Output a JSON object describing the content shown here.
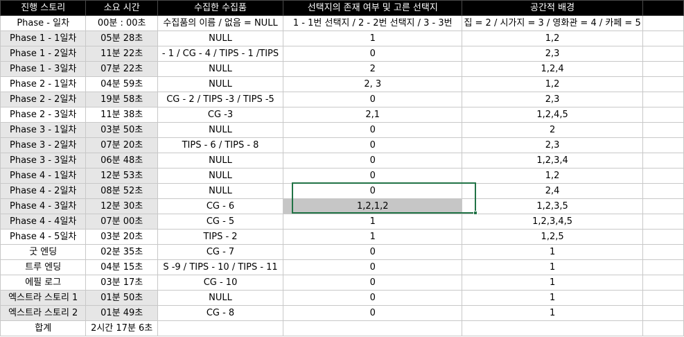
{
  "columns": [
    "진행 스토리",
    "소요 시간",
    "수집한 수집품",
    "선택지의 존재 여부 및 고른 선택지",
    "공간적 배경",
    "",
    ""
  ],
  "rows": [
    {
      "story": "Phase - 일차",
      "time": "00분 : 00초",
      "items": "수집품의 이름 / 없음 = NULL",
      "choice": "1 - 1번 선택지 / 2 - 2번 선택지 / 3 - 3번",
      "place": "집 = 2 / 시가지 = 3 / 영화관 = 4 / 카페  = 5",
      "e1": "",
      "e2": ""
    },
    {
      "story": "Phase 1 - 1일차",
      "time": "05분 28초",
      "items": "NULL",
      "choice": "1",
      "place": "1,2",
      "e1": "",
      "e2": ""
    },
    {
      "story": "Phase 1 - 2일차",
      "time": "11분 22초",
      "items": "- 1 / CG - 4 / TIPS - 1 /TIPS",
      "choice": "0",
      "place": "2,3",
      "e1": "",
      "e2": ""
    },
    {
      "story": "Phase 1 - 3일차",
      "time": "07분 22초",
      "items": "NULL",
      "choice": "2",
      "place": "1,2,4",
      "e1": "",
      "e2": ""
    },
    {
      "story": "Phase 2 - 1일차",
      "time": "04분 59초",
      "items": "NULL",
      "choice": "2, 3",
      "place": "1,2",
      "e1": "",
      "e2": ""
    },
    {
      "story": "Phase 2 - 2일차",
      "time": "19분 58초",
      "items": "CG - 2 / TIPS -3 / TIPS -5",
      "choice": "0",
      "place": "2,3",
      "e1": "",
      "e2": ""
    },
    {
      "story": "Phase 2 - 3일차",
      "time": "11분 38초",
      "items": "CG -3",
      "choice": "2,1",
      "place": "1,2,4,5",
      "e1": "",
      "e2": ""
    },
    {
      "story": "Phase 3 - 1일차",
      "time": "03분 50초",
      "items": "NULL",
      "choice": "0",
      "place": "2",
      "e1": "",
      "e2": ""
    },
    {
      "story": "Phase 3 - 2일차",
      "time": "07분 20초",
      "items": "TIPS - 6 / TIPS - 8",
      "choice": "0",
      "place": "2,3",
      "e1": "",
      "e2": ""
    },
    {
      "story": "Phase 3 - 3일차",
      "time": "06분 48초",
      "items": "NULL",
      "choice": "0",
      "place": "1,2,3,4",
      "e1": "",
      "e2": ""
    },
    {
      "story": "Phase 4 - 1일차",
      "time": "12분 53초",
      "items": "NULL",
      "choice": "0",
      "place": "1,2",
      "e1": "",
      "e2": ""
    },
    {
      "story": "Phase 4 - 2일차",
      "time": "08분 52초",
      "items": "NULL",
      "choice": "0",
      "place": "2,4",
      "e1": "",
      "e2": ""
    },
    {
      "story": "Phase 4 - 3일차",
      "time": "12분 30초",
      "items": "CG - 6",
      "choice": "1,2,1,2",
      "place": "1,2,3,5",
      "e1": "",
      "e2": ""
    },
    {
      "story": "Phase 4 - 4일차",
      "time": "07분 00초",
      "items": "CG - 5",
      "choice": "1",
      "place": "1,2,3,4,5",
      "e1": "",
      "e2": ""
    },
    {
      "story": "Phase 4 - 5일차",
      "time": "03분 20초",
      "items": "TIPS - 2",
      "choice": "1",
      "place": "1,2,5",
      "e1": "",
      "e2": ""
    },
    {
      "story": "굿 엔딩",
      "time": "02분 35초",
      "items": "CG - 7",
      "choice": "0",
      "place": "1",
      "e1": "",
      "e2": ""
    },
    {
      "story": "트루 엔딩",
      "time": "04분 15초",
      "items": "S -9 / TIPS - 10 / TIPS - 11",
      "choice": "0",
      "place": "1",
      "e1": "",
      "e2": ""
    },
    {
      "story": "에필 로그",
      "time": "03분 17초",
      "items": "CG - 10",
      "choice": "0",
      "place": "1",
      "e1": "",
      "e2": ""
    },
    {
      "story": "엑스트라 스토리 1",
      "time": "01분 50초",
      "items": "NULL",
      "choice": "0",
      "place": "1",
      "e1": "",
      "e2": ""
    },
    {
      "story": "엑스트라 스토리 2",
      "time": "01분 49초",
      "items": "CG - 8",
      "choice": "0",
      "place": "1",
      "e1": "",
      "e2": ""
    },
    {
      "story": "합계",
      "time": "2시간 17분 6초",
      "items": "",
      "choice": "",
      "place": "",
      "e1": "",
      "e2": ""
    }
  ],
  "selection": {
    "range_color": "#217346",
    "selected_fill": "#c6c6c6"
  }
}
